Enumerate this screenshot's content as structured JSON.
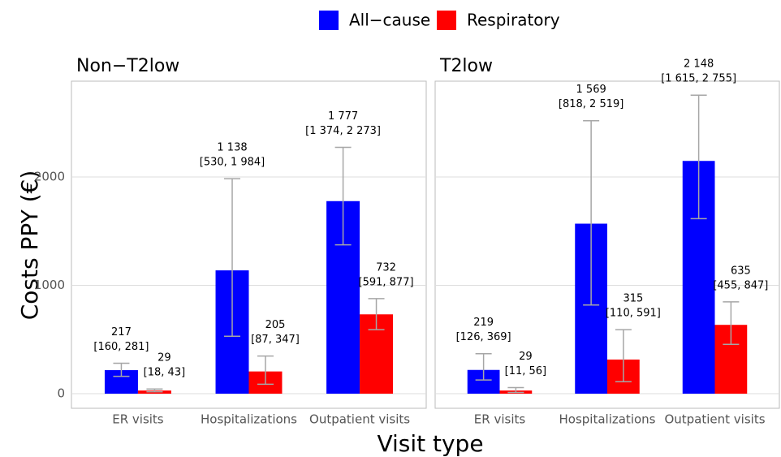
{
  "legend": [
    {
      "name": "All−cause",
      "color": "#0000ff"
    },
    {
      "name": "Respiratory",
      "color": "#ff0000"
    }
  ],
  "xlabel": "Visit type",
  "ylabel": "Costs PPY (€)",
  "chart_data": [
    {
      "type": "bar",
      "title": "Non−T2low",
      "categories": [
        "ER visits",
        "Hospitalizations",
        "Outpatient visits"
      ],
      "ylim": [
        -135,
        2884
      ],
      "yticks": [
        0,
        1000,
        2000
      ],
      "grid": true,
      "series": [
        {
          "values": [
            217,
            1138,
            1777
          ],
          "value_labels": [
            "217",
            "1 138",
            "1 777"
          ],
          "lower": [
            160,
            530,
            1374
          ],
          "upper": [
            281,
            1984,
            2273
          ],
          "ci_labels": [
            "[160, 281]",
            "[530, 1 984]",
            "[1 374, 2 273]"
          ]
        },
        {
          "values": [
            29,
            205,
            732
          ],
          "value_labels": [
            "29",
            "205",
            "732"
          ],
          "lower": [
            18,
            87,
            591
          ],
          "upper": [
            43,
            347,
            877
          ],
          "ci_labels": [
            "[18, 43]",
            "[87, 347]",
            "[591, 877]"
          ]
        }
      ]
    },
    {
      "type": "bar",
      "title": "T2low",
      "categories": [
        "ER visits",
        "Hospitalizations",
        "Outpatient visits"
      ],
      "ylim": [
        -135,
        2884
      ],
      "yticks": [
        0,
        1000,
        2000
      ],
      "grid": true,
      "series": [
        {
          "values": [
            219,
            1569,
            2148
          ],
          "value_labels": [
            "219",
            "1 569",
            "2 148"
          ],
          "lower": [
            126,
            818,
            1615
          ],
          "upper": [
            369,
            2519,
            2755
          ],
          "ci_labels": [
            "[126, 369]",
            "[818, 2 519]",
            "[1 615, 2 755]"
          ]
        },
        {
          "values": [
            29,
            315,
            635
          ],
          "value_labels": [
            "29",
            "315",
            "635"
          ],
          "lower": [
            11,
            110,
            455
          ],
          "upper": [
            56,
            591,
            847
          ],
          "ci_labels": [
            "[11, 56]",
            "[110, 591]",
            "[455, 847]"
          ]
        }
      ]
    }
  ]
}
